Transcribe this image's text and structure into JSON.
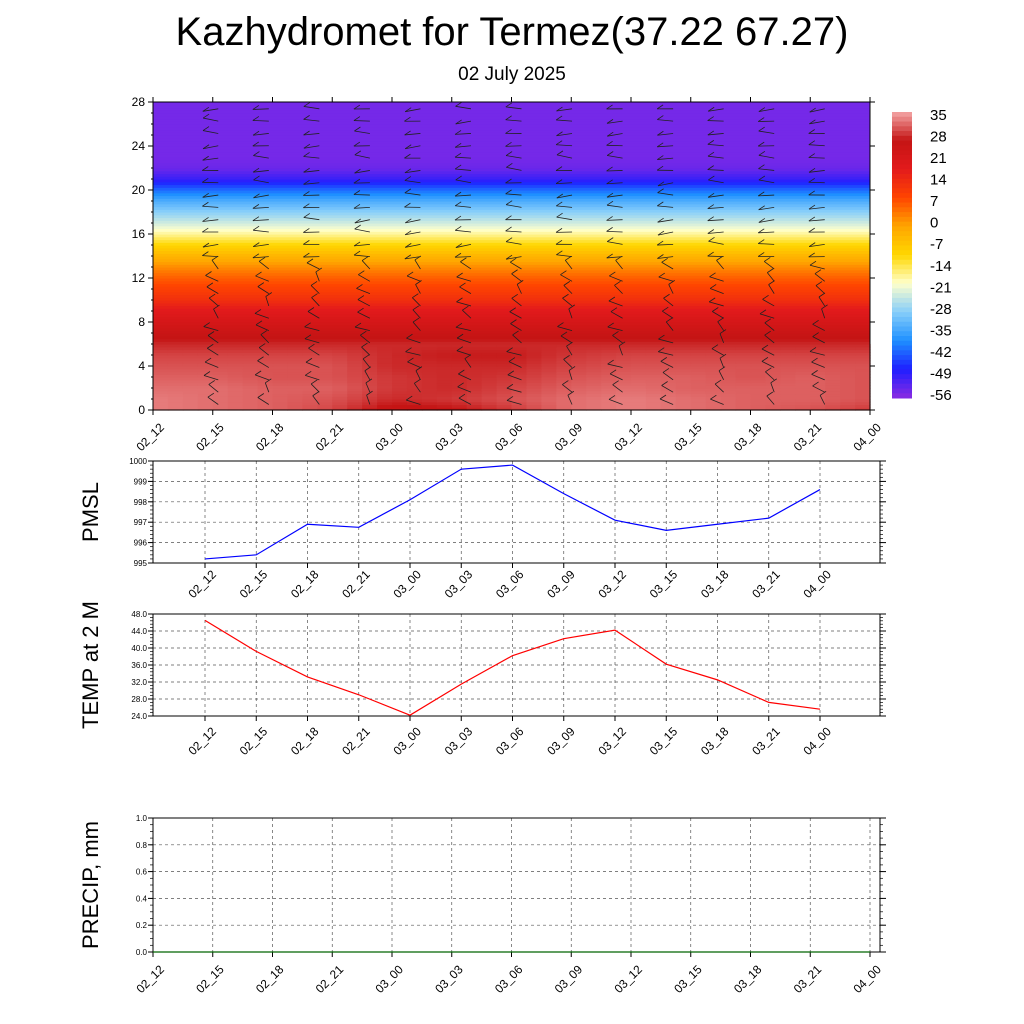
{
  "title": "Kazhydromet for Termez(37.22 67.27)",
  "subtitle": "02 July 2025",
  "chart_data": [
    {
      "type": "heatmap",
      "name": "height-time-temperature",
      "x_ticks": [
        "02_12",
        "02_15",
        "02_18",
        "02_21",
        "03_00",
        "03_03",
        "03_06",
        "03_09",
        "03_12",
        "03_15",
        "03_18",
        "03_21",
        "04_00"
      ],
      "y_ticks": [
        0,
        4,
        8,
        12,
        16,
        20,
        24,
        28
      ],
      "ylim": [
        0,
        28
      ],
      "colorbar_labels": [
        "35",
        "28",
        "21",
        "14",
        "7",
        "0",
        "-7",
        "-14",
        "-21",
        "-28",
        "-35",
        "-42",
        "-49",
        "-56"
      ],
      "colorbar_range": [
        -63,
        42
      ],
      "colormap": [
        "#8a2be2",
        "#1e1eff",
        "#1e90ff",
        "#87cefa",
        "#ffffcc",
        "#ffd700",
        "#ffa500",
        "#ff4500",
        "#e31a1c",
        "#c41414",
        "#f4a6a6"
      ],
      "temperature_profile": {
        "heights": [
          0,
          1,
          2,
          3,
          4,
          5,
          6,
          7,
          8,
          9,
          10,
          11,
          12,
          13,
          14,
          15,
          16,
          17,
          18,
          19,
          20,
          21,
          22,
          23,
          24,
          28
        ],
        "values": [
          38,
          38,
          37,
          36,
          36,
          35,
          33,
          30,
          26,
          22,
          16,
          12,
          8,
          3,
          -3,
          -10,
          -18,
          -25,
          -31,
          -37,
          -45,
          -55,
          -60,
          -61,
          -61,
          -61
        ]
      },
      "low_level_values": {
        "02_12": [
          39,
          39,
          38,
          37,
          36,
          35
        ],
        "02_15": [
          38,
          38,
          38,
          37,
          36,
          35
        ],
        "02_18": [
          37,
          37,
          37,
          36,
          36,
          35
        ],
        "02_21": [
          35,
          36,
          37,
          36,
          36,
          35
        ],
        "03_00": [
          30,
          33,
          34,
          34,
          33,
          33
        ],
        "03_03": [
          31,
          34,
          33,
          33,
          33,
          32
        ],
        "03_06": [
          34,
          36,
          35,
          34,
          33,
          32
        ],
        "03_09": [
          38,
          38,
          37,
          36,
          35,
          34
        ],
        "03_12": [
          39,
          39,
          38,
          37,
          36,
          35
        ],
        "03_15": [
          38,
          38,
          37,
          37,
          36,
          35
        ],
        "03_18": [
          37,
          37,
          37,
          36,
          36,
          35
        ],
        "03_21": [
          36,
          37,
          37,
          37,
          36,
          35
        ],
        "04_00": [
          34,
          36,
          36,
          36,
          36,
          35
        ]
      },
      "wind_barbs": "present at every time and height level"
    },
    {
      "type": "line",
      "name": "pmsl",
      "ylabel": "PMSL",
      "categories": [
        "02_12",
        "02_15",
        "02_18",
        "02_21",
        "03_00",
        "03_03",
        "03_06",
        "03_09",
        "03_12",
        "03_15",
        "03_18",
        "03_21",
        "04_00"
      ],
      "values": [
        995.2,
        995.4,
        996.9,
        996.75,
        998.1,
        999.6,
        999.8,
        998.4,
        997.1,
        996.6,
        996.9,
        997.2,
        998.6
      ],
      "ylim": [
        995,
        1000
      ],
      "y_ticks": [
        "995",
        "996",
        "997",
        "998",
        "999",
        "1000"
      ],
      "color": "#0000ff",
      "grid": true
    },
    {
      "type": "line",
      "name": "temp-2m",
      "ylabel": "TEMP at 2 M",
      "categories": [
        "02_12",
        "02_15",
        "02_18",
        "02_21",
        "03_00",
        "03_03",
        "03_06",
        "03_09",
        "03_12",
        "03_15",
        "03_18",
        "03_21",
        "04_00"
      ],
      "values": [
        46.5,
        39.2,
        33.2,
        29.0,
        24.2,
        31.5,
        38.2,
        42.2,
        44.2,
        36.2,
        32.5,
        27.2,
        25.6
      ],
      "ylim": [
        24,
        48
      ],
      "y_ticks": [
        "24.0",
        "28.0",
        "32.0",
        "36.0",
        "40.0",
        "44.0",
        "48.0"
      ],
      "color": "#ff0000",
      "grid": true
    },
    {
      "type": "line",
      "name": "precip",
      "ylabel": "PRECIP, mm",
      "categories": [
        "02_12",
        "02_15",
        "02_18",
        "02_21",
        "03_00",
        "03_03",
        "03_06",
        "03_09",
        "03_12",
        "03_15",
        "03_18",
        "03_21",
        "04_00"
      ],
      "values": [
        0,
        0,
        0,
        0,
        0,
        0,
        0,
        0,
        0,
        0,
        0,
        0,
        0
      ],
      "ylim": [
        0,
        1
      ],
      "y_ticks": [
        "0.0",
        "0.2",
        "0.4",
        "0.6",
        "0.8",
        "1.0"
      ],
      "color": "#006400",
      "grid": true
    }
  ]
}
